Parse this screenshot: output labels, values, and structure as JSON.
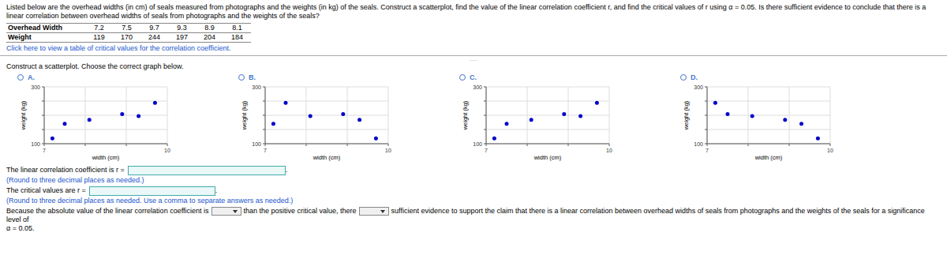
{
  "page": {
    "desc_line1": "Listed below are the overhead widths (in cm) of seals measured from photographs and the weights (in kg) of the seals. Construct a scatterplot, find the value of the linear correlation coefficient r, and find the critical values of r using α = 0.05. Is there sufficient evidence to conclude that there is a linear",
    "desc_line2": "correlation between overhead widths of seals from photographs and the weights of the seals?",
    "table": {
      "rows": [
        {
          "label": "Overhead Width",
          "values": [
            7.2,
            7.5,
            9.7,
            9.3,
            8.9,
            8.1
          ]
        },
        {
          "label": "Weight",
          "values": [
            119,
            170,
            244,
            197,
            204,
            184
          ]
        }
      ]
    },
    "link_text": "Click here to view a table of critical values for the correlation coefficient.",
    "dots_text": ".....",
    "instruction": "Construct a scatterplot. Choose the correct graph below.",
    "line1": "The linear correlation coefficient is r =",
    "line1_note": "(Round to three decimal places as needed.)",
    "line2": "The critical values are r =",
    "line2_note": "(Round to three decimal places as needed. Use a comma to separate answers as needed.)",
    "line3a": "Because the absolute value of the linear correlation coefficient is",
    "line3b": "than the positive critical value, there",
    "line3c": "sufficient evidence to support the claim that there is a linear correlation between overhead widths of seals from photographs and the weights of the seals for a significance level of",
    "line3d": "α = 0.05.",
    "box_end": ".",
    "link_color": "#2255cc",
    "radio_color": "#4477cc",
    "input_border_color": "#44aaaa",
    "input_fill_color": "#eaf8f8"
  },
  "chart_data": [
    {
      "type": "scatter",
      "title": "A.",
      "x": [
        7.2,
        7.5,
        9.7,
        9.3,
        8.9,
        8.1
      ],
      "values": [
        119,
        170,
        244,
        197,
        204,
        184
      ],
      "xlabel": "width (cm)",
      "ylabel": "weight (kg)",
      "xlim": [
        7,
        10
      ],
      "ylim": [
        100,
        300
      ],
      "xticks": [
        7,
        {
          "value": 8,
          "label": null
        },
        {
          "value": 9,
          "label": null
        },
        10
      ],
      "yticks": [
        100,
        {
          "value": 150,
          "label": null
        },
        {
          "value": 200,
          "label": null
        },
        {
          "value": 250,
          "label": null
        },
        300
      ],
      "grid": true,
      "color": "#0000cc"
    },
    {
      "type": "scatter",
      "title": "B.",
      "x": [
        7.2,
        7.5,
        9.7,
        9.3,
        8.9,
        8.1
      ],
      "values": [
        170,
        244,
        119,
        184,
        204,
        197
      ],
      "xlabel": "width (cm)",
      "ylabel": "weight (kg)",
      "xlim": [
        7,
        10
      ],
      "ylim": [
        100,
        300
      ],
      "xticks": [
        7,
        {
          "value": 8,
          "label": null
        },
        {
          "value": 9,
          "label": null
        },
        10
      ],
      "yticks": [
        100,
        {
          "value": 150,
          "label": null
        },
        {
          "value": 200,
          "label": null
        },
        {
          "value": 250,
          "label": null
        },
        300
      ],
      "grid": true,
      "color": "#0000cc"
    },
    {
      "type": "scatter",
      "title": "C.",
      "x": [
        7.2,
        7.5,
        9.7,
        9.3,
        8.9,
        8.1
      ],
      "values": [
        119,
        170,
        244,
        197,
        204,
        184
      ],
      "xlabel": "width (cm)",
      "ylabel": "weight (kg)",
      "xlim": [
        7,
        10
      ],
      "ylim": [
        100,
        300
      ],
      "xticks": [
        7,
        {
          "value": 8,
          "label": null
        },
        {
          "value": 9,
          "label": null
        },
        10
      ],
      "yticks": [
        100,
        {
          "value": 150,
          "label": null
        },
        {
          "value": 200,
          "label": null
        },
        {
          "value": 250,
          "label": null
        },
        300
      ],
      "grid": true,
      "color": "#0000cc"
    },
    {
      "type": "scatter",
      "title": "D.",
      "x": [
        7.2,
        7.5,
        9.7,
        9.3,
        8.9,
        8.1
      ],
      "values": [
        244,
        204,
        119,
        170,
        184,
        197
      ],
      "xlabel": "width (cm)",
      "ylabel": "weight (kg)",
      "xlim": [
        7,
        10
      ],
      "ylim": [
        100,
        300
      ],
      "xticks": [
        7,
        {
          "value": 8,
          "label": null
        },
        {
          "value": 9,
          "label": null
        },
        10
      ],
      "yticks": [
        100,
        {
          "value": 150,
          "label": null
        },
        {
          "value": 200,
          "label": null
        },
        {
          "value": 250,
          "label": null
        },
        300
      ],
      "grid": true,
      "color": "#0000cc"
    }
  ]
}
